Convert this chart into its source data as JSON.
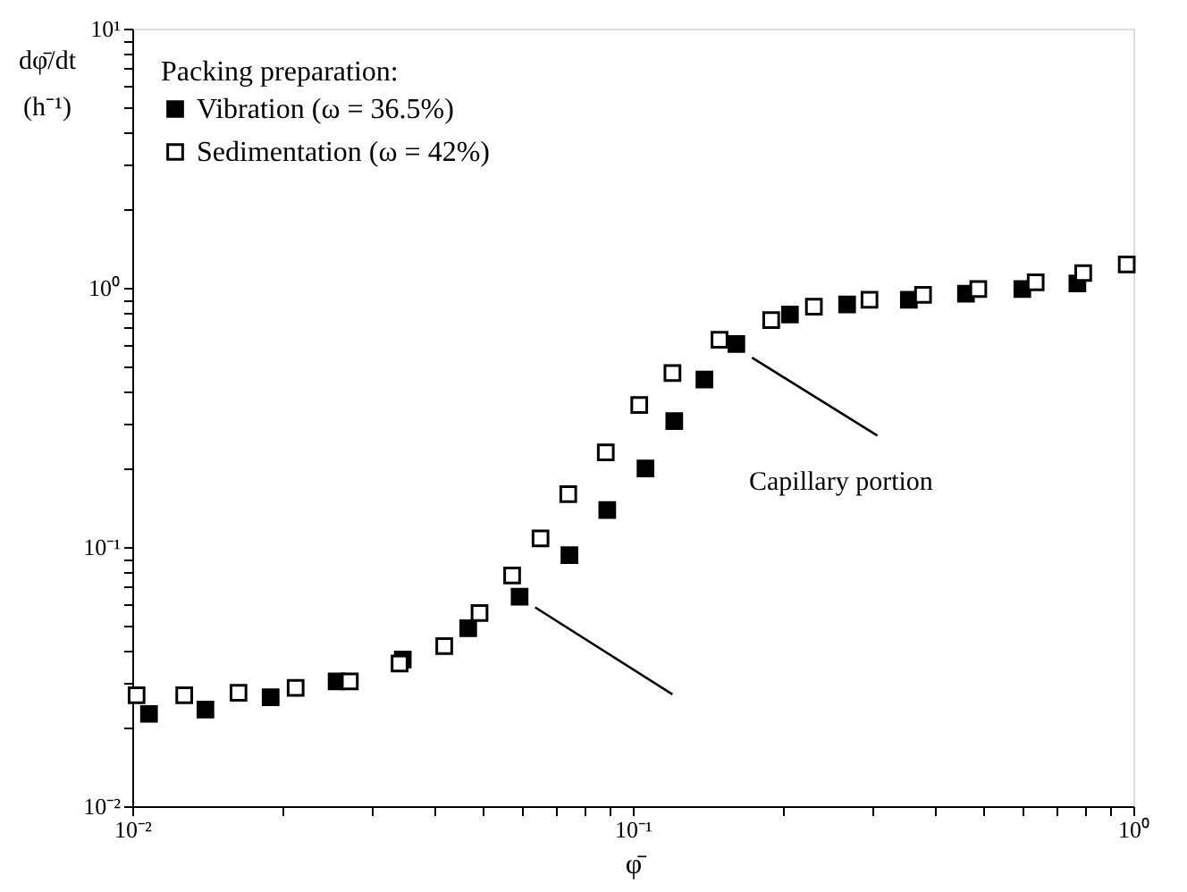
{
  "chart_data": {
    "type": "scatter",
    "xlabel": "φ̄",
    "ylabel": "dφ̄/dt (h⁻¹)",
    "legend_title": "Packing preparation:",
    "log": "xy",
    "grid": false,
    "legend": "top left",
    "marker": "square",
    "xlim": [
      0.01,
      1
    ],
    "ylim": [
      0.01,
      10
    ],
    "xticks": [
      {
        "value": 0.01,
        "label": "10⁻²"
      },
      {
        "value": 0.02,
        "label": null
      },
      {
        "value": 0.03,
        "label": null
      },
      {
        "value": 0.04,
        "label": null
      },
      {
        "value": 0.05,
        "label": null
      },
      {
        "value": 0.06,
        "label": null
      },
      {
        "value": 0.07,
        "label": null
      },
      {
        "value": 0.08,
        "label": null
      },
      {
        "value": 0.09,
        "label": null
      },
      {
        "value": 0.1,
        "label": "10⁻¹"
      },
      {
        "value": 0.2,
        "label": null
      },
      {
        "value": 0.3,
        "label": null
      },
      {
        "value": 0.4,
        "label": null
      },
      {
        "value": 0.5,
        "label": null
      },
      {
        "value": 0.6,
        "label": null
      },
      {
        "value": 0.7,
        "label": null
      },
      {
        "value": 0.8,
        "label": null
      },
      {
        "value": 0.9,
        "label": null
      },
      {
        "value": 1,
        "label": "10⁰"
      }
    ],
    "yticks": [
      {
        "value": 0.01,
        "label": "10⁻²"
      },
      {
        "value": 0.02,
        "label": null
      },
      {
        "value": 0.03,
        "label": null
      },
      {
        "value": 0.04,
        "label": null
      },
      {
        "value": 0.05,
        "label": null
      },
      {
        "value": 0.06,
        "label": null
      },
      {
        "value": 0.07,
        "label": null
      },
      {
        "value": 0.08,
        "label": null
      },
      {
        "value": 0.09,
        "label": null
      },
      {
        "value": 0.1,
        "label": "10⁻¹"
      },
      {
        "value": 0.2,
        "label": null
      },
      {
        "value": 0.3,
        "label": null
      },
      {
        "value": 0.4,
        "label": null
      },
      {
        "value": 0.5,
        "label": null
      },
      {
        "value": 0.6,
        "label": null
      },
      {
        "value": 0.7,
        "label": null
      },
      {
        "value": 0.8,
        "label": null
      },
      {
        "value": 0.9,
        "label": null
      },
      {
        "value": 1,
        "label": "10⁰"
      },
      {
        "value": 2,
        "label": null
      },
      {
        "value": 3,
        "label": null
      },
      {
        "value": 4,
        "label": null
      },
      {
        "value": 5,
        "label": null
      },
      {
        "value": 6,
        "label": null
      },
      {
        "value": 7,
        "label": null
      },
      {
        "value": 8,
        "label": null
      },
      {
        "value": 9,
        "label": null
      },
      {
        "value": 10,
        "label": "10¹"
      }
    ],
    "series": [
      {
        "name": "Vibration  (ω = 36.5%)",
        "color": "#000000",
        "x": [
          0.0108,
          0.014,
          0.0189,
          0.0256,
          0.0347,
          0.0469,
          0.0594,
          0.0747,
          0.0889,
          0.106,
          0.121,
          0.139,
          0.161,
          0.206,
          0.268,
          0.356,
          0.463,
          0.6,
          0.773
        ],
        "values": [
          0.0227,
          0.0236,
          0.0263,
          0.0303,
          0.0368,
          0.0486,
          0.0643,
          0.093,
          0.139,
          0.201,
          0.306,
          0.443,
          0.607,
          0.789,
          0.863,
          0.899,
          0.948,
          0.989,
          1.04
        ]
      },
      {
        "name": "Sedimentation  (ω = 42%)",
        "color": "#ffffff",
        "x": [
          0.0102,
          0.0127,
          0.0163,
          0.0212,
          0.0272,
          0.0342,
          0.042,
          0.0494,
          0.0574,
          0.0654,
          0.0743,
          0.0883,
          0.103,
          0.12,
          0.149,
          0.189,
          0.23,
          0.297,
          0.38,
          0.49,
          0.638,
          0.794,
          0.97
        ],
        "values": [
          0.0268,
          0.0268,
          0.0274,
          0.0286,
          0.0303,
          0.0355,
          0.0415,
          0.0556,
          0.0776,
          0.108,
          0.16,
          0.232,
          0.353,
          0.469,
          0.63,
          0.75,
          0.845,
          0.899,
          0.94,
          0.989,
          1.05,
          1.14,
          1.23
        ]
      },
      {
        "type": "line",
        "marker": "none",
        "color": "#000000",
        "x": [
          0.0638,
          0.12
        ],
        "values": [
          0.0585,
          0.027
        ]
      },
      {
        "type": "line",
        "marker": "none",
        "color": "#000000",
        "x": [
          0.173,
          0.308
        ],
        "values": [
          0.538,
          0.269
        ]
      }
    ],
    "annotations": [
      "Capillary portion"
    ]
  }
}
